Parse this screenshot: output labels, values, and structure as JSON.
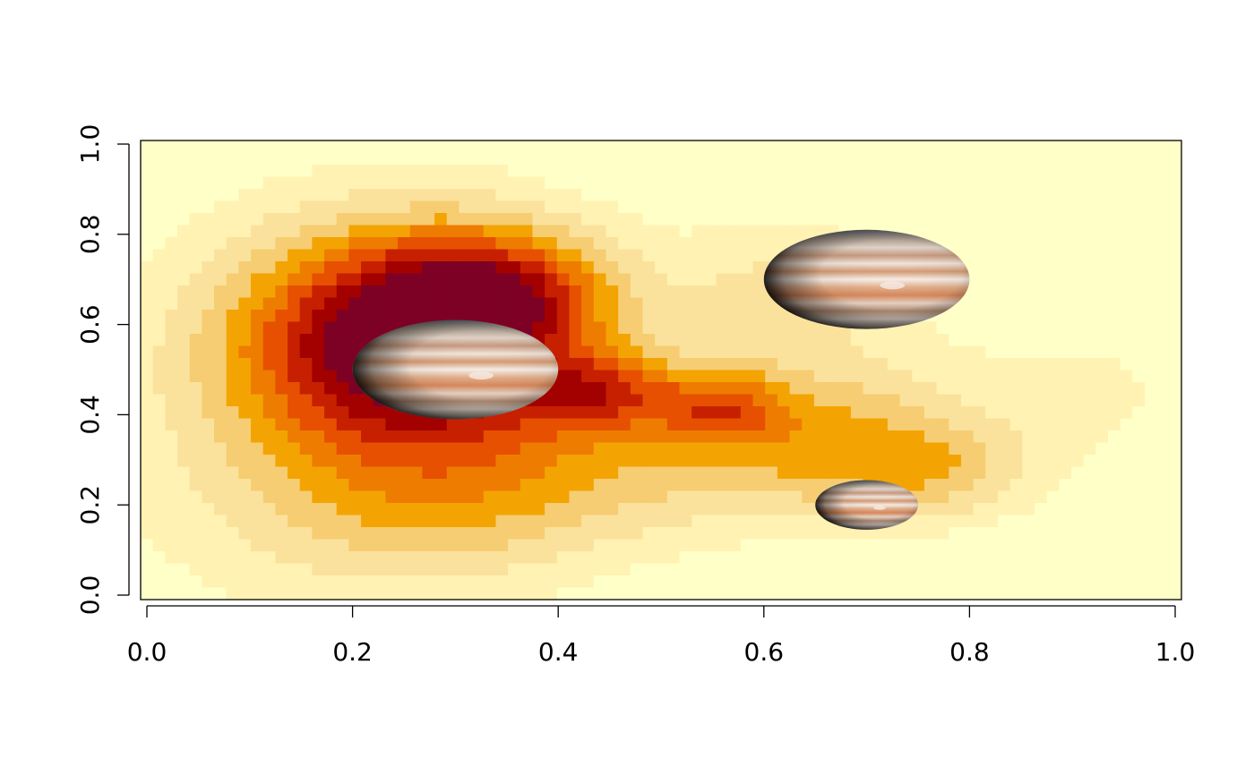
{
  "chart_data": {
    "type": "heatmap",
    "title": "",
    "xlabel": "",
    "ylabel": "",
    "xlim": [
      0.0,
      1.0
    ],
    "ylim": [
      0.0,
      1.0
    ],
    "x_ticks": [
      "0.0",
      "0.2",
      "0.4",
      "0.6",
      "0.8",
      "1.0"
    ],
    "y_ticks": [
      "0.0",
      "0.2",
      "0.4",
      "0.6",
      "0.8",
      "1.0"
    ],
    "grid": false,
    "colormap": [
      "#FFFFC8",
      "#FFF2B3",
      "#FBE29C",
      "#F6CD72",
      "#F3A402",
      "#EE7C00",
      "#E65000",
      "#C62000",
      "#A30000",
      "#7D0025"
    ],
    "density_peaks": [
      {
        "x": 0.27,
        "y": 0.55,
        "peak_level": 9
      },
      {
        "x": 0.44,
        "y": 0.45,
        "peak_level": 8
      },
      {
        "x": 0.56,
        "y": 0.42,
        "peak_level": 7
      },
      {
        "x": 0.72,
        "y": 0.3,
        "peak_level": 5
      }
    ],
    "image_markers": [
      {
        "name": "jupiter",
        "x": 0.3,
        "y": 0.5,
        "width": 0.2,
        "height": 0.22
      },
      {
        "name": "jupiter",
        "x": 0.7,
        "y": 0.7,
        "width": 0.2,
        "height": 0.22
      },
      {
        "name": "jupiter",
        "x": 0.7,
        "y": 0.2,
        "width": 0.1,
        "height": 0.11
      }
    ]
  }
}
